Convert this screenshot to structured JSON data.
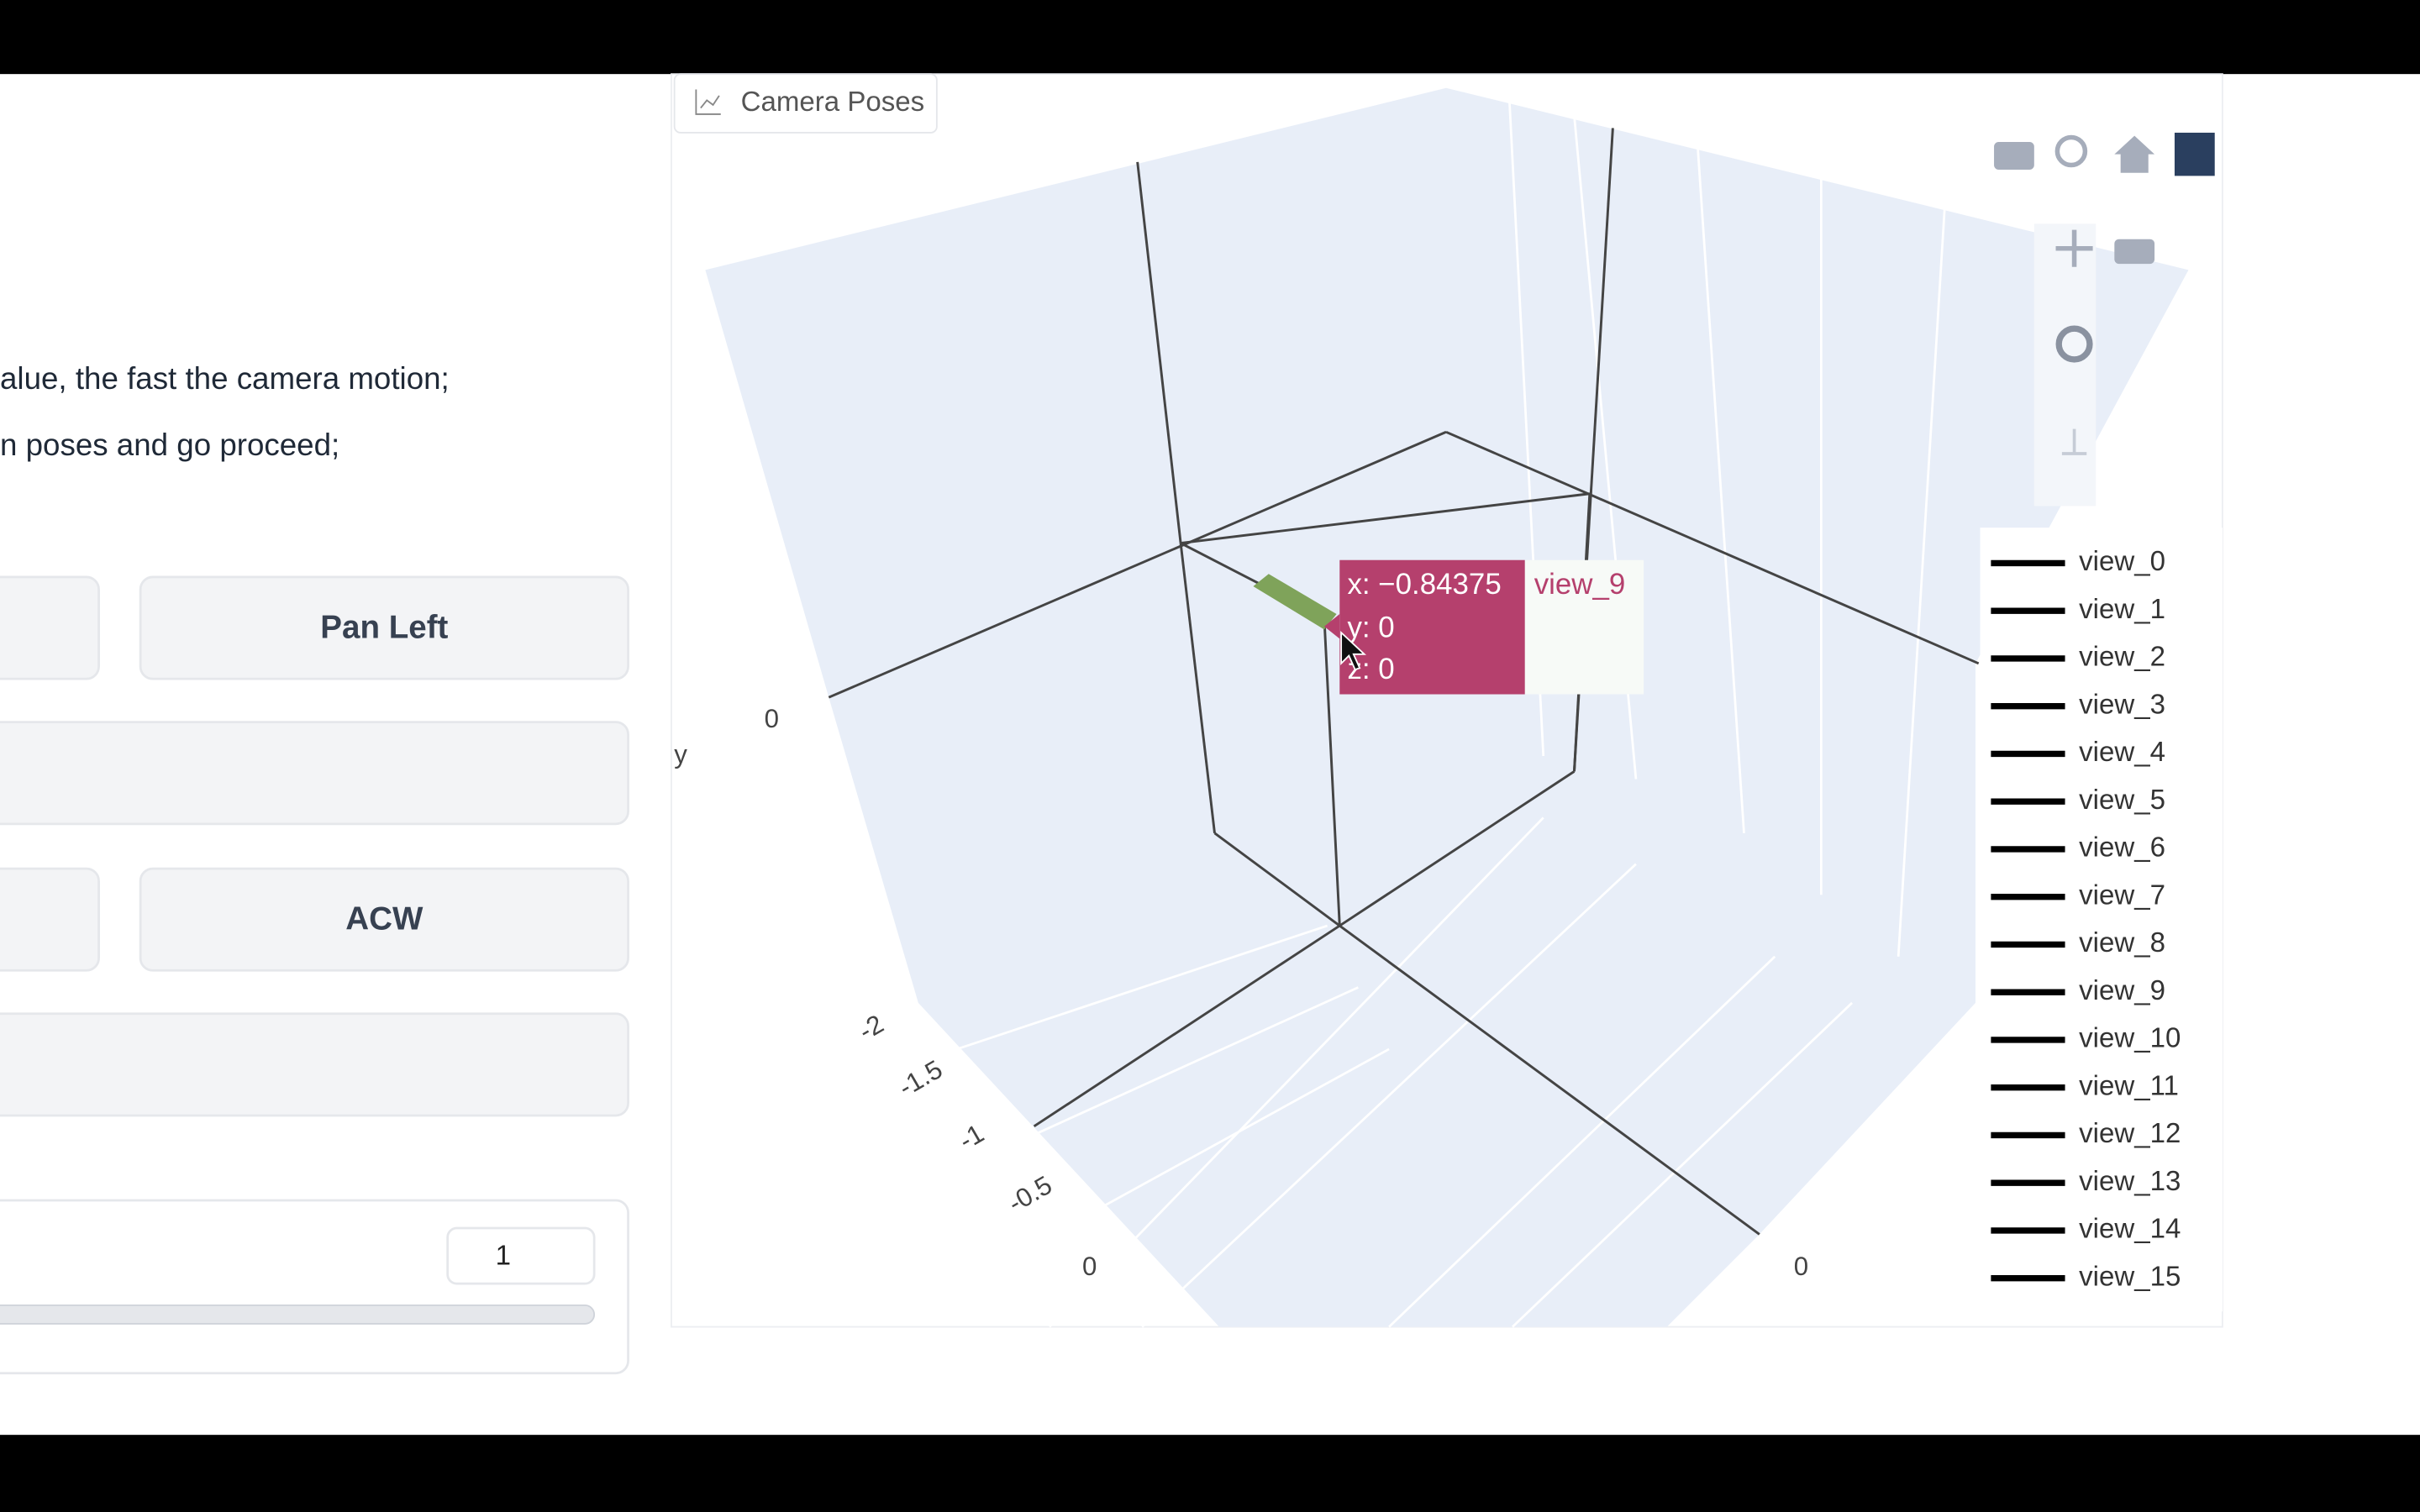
{
  "left_panel": {
    "instructions": [
      "alue, the fast the camera motion;",
      "n poses and go proceed;"
    ],
    "buttons": [
      "Pan Left",
      "ACW"
    ],
    "slider_value": "1"
  },
  "plot": {
    "title": "Camera Poses",
    "axis_label": "y",
    "tick_labels": [
      "0",
      "-2",
      "-1.5",
      "-1",
      "-0.5",
      "0",
      "0"
    ],
    "tooltip": {
      "x": "x: −0.84375",
      "y": "y: 0",
      "z": "z: 0",
      "trace": "view_9"
    },
    "legend": [
      "view_0",
      "view_1",
      "view_2",
      "view_3",
      "view_4",
      "view_5",
      "view_6",
      "view_7",
      "view_8",
      "view_9",
      "view_10",
      "view_11",
      "view_12",
      "view_13",
      "view_14",
      "view_15"
    ]
  }
}
